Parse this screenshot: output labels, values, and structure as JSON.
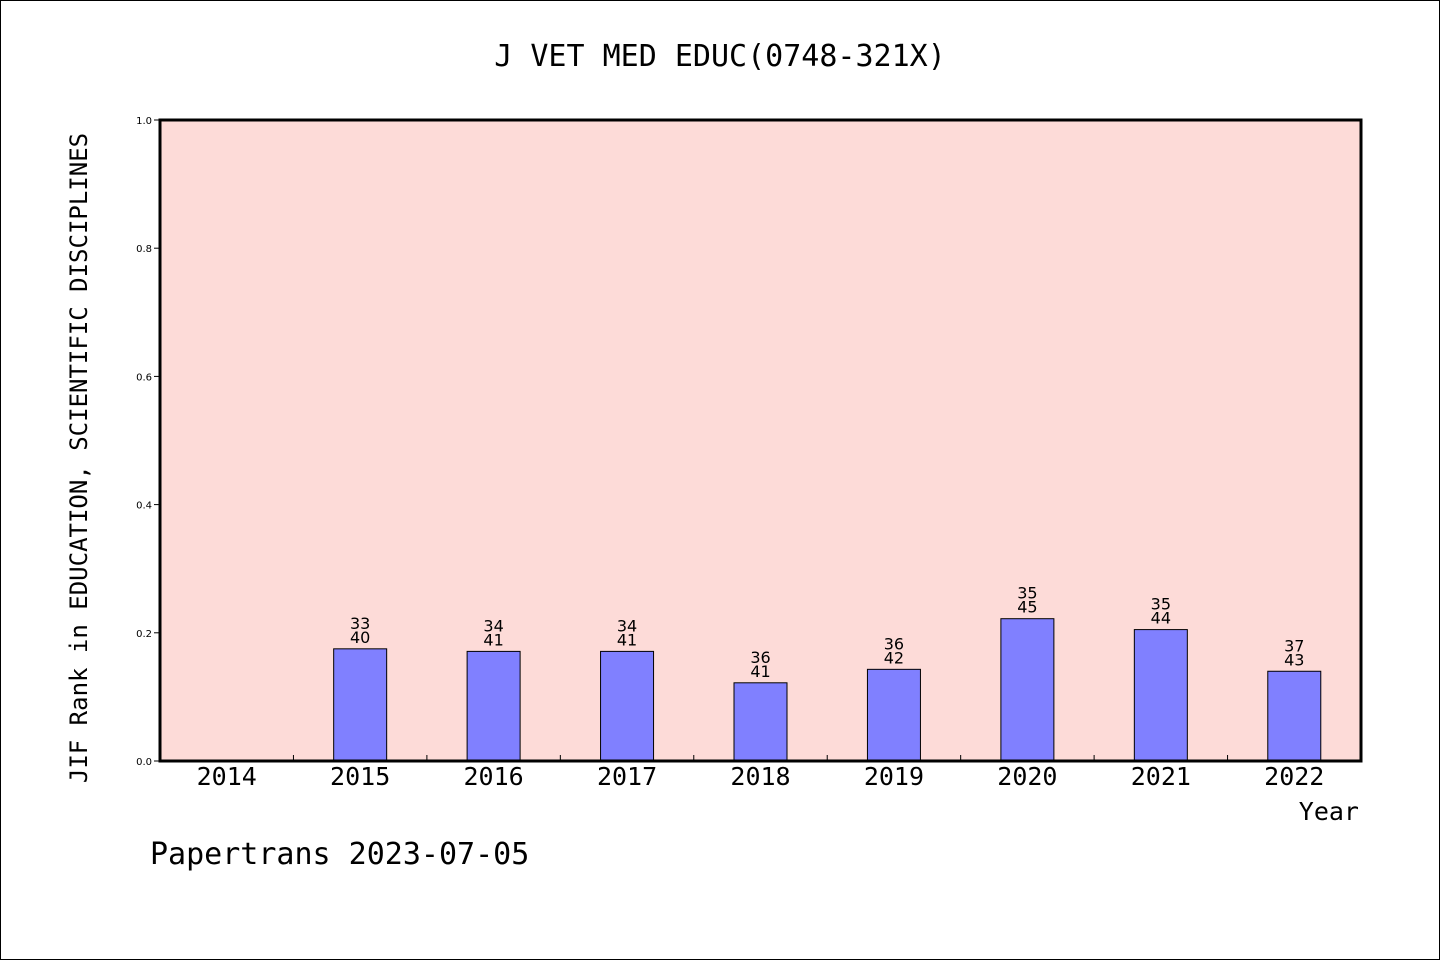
{
  "chart_data": {
    "type": "bar",
    "title": "J VET MED EDUC(0748-321X)",
    "xlabel": "Year",
    "ylabel": "JIF Rank in EDUCATION, SCIENTIFIC DISCIPLINES",
    "footer": "Papertrans 2023-07-05",
    "categories": [
      "2014",
      "2015",
      "2016",
      "2017",
      "2018",
      "2019",
      "2020",
      "2021",
      "2022"
    ],
    "values": [
      null,
      0.175,
      0.171,
      0.171,
      0.122,
      0.143,
      0.222,
      0.205,
      0.14
    ],
    "ranks": [
      "",
      "33",
      "34",
      "34",
      "36",
      "36",
      "35",
      "35",
      "37"
    ],
    "totals": [
      "",
      "40",
      "41",
      "41",
      "41",
      "42",
      "45",
      "44",
      "43"
    ],
    "yticks": [
      "0.0",
      "0.2",
      "0.4",
      "0.6",
      "0.8",
      "1.0"
    ],
    "ylim": [
      0,
      1.0
    ],
    "grid": false,
    "colors": {
      "plot_background": "#fddbd8",
      "bar_fill": "#8080ff",
      "bar_stroke": "#000000"
    }
  }
}
